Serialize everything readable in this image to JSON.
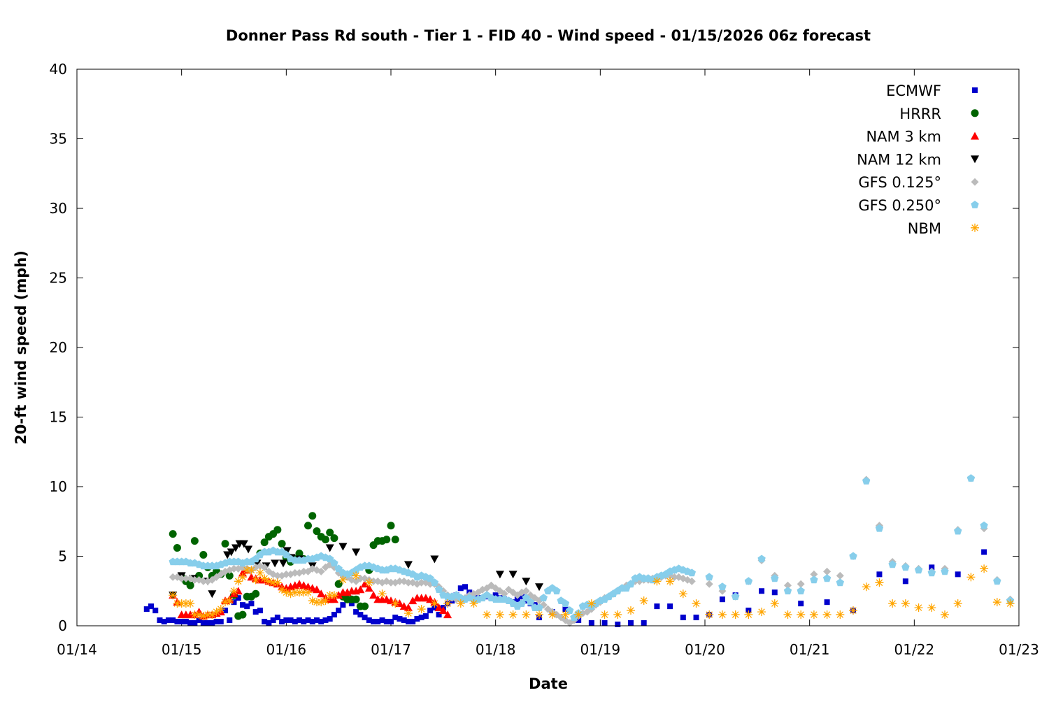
{
  "chart_data": {
    "type": "scatter",
    "title": "Donner Pass Rd south - Tier 1 - FID 40 - Wind speed - 01/15/2026 06z forecast",
    "xlabel": "Date",
    "ylabel": "20-ft wind speed (mph)",
    "x_units": "hours since 01/14 00:00",
    "xlim": [
      0,
      216
    ],
    "ylim": [
      0,
      40
    ],
    "yticks": [
      0,
      5,
      10,
      15,
      20,
      25,
      30,
      35,
      40
    ],
    "xticks": [
      {
        "value": 0,
        "label": "01/14"
      },
      {
        "value": 24,
        "label": "01/15"
      },
      {
        "value": 48,
        "label": "01/16"
      },
      {
        "value": 72,
        "label": "01/17"
      },
      {
        "value": 96,
        "label": "01/18"
      },
      {
        "value": 120,
        "label": "01/19"
      },
      {
        "value": 144,
        "label": "01/20"
      },
      {
        "value": 168,
        "label": "01/21"
      },
      {
        "value": 192,
        "label": "01/22"
      },
      {
        "value": 216,
        "label": "01/23"
      }
    ],
    "grid": false,
    "legend_position": "top-right",
    "series": [
      {
        "name": "ECMWF",
        "color": "#0000cc",
        "marker": "square",
        "segments": [
          {
            "start": 16,
            "step": 1,
            "values": [
              1.2,
              1.4,
              1.1,
              0.4,
              0.3,
              0.4,
              0.4,
              0.3,
              0.3,
              0.3,
              0.2,
              0.2,
              0.4,
              0.2,
              0.2,
              0.2,
              0.3,
              0.3,
              1.1,
              0.4,
              1.7,
              2.0,
              1.5,
              1.4,
              1.6,
              1.0,
              1.1,
              0.3,
              0.2,
              0.4,
              0.6,
              0.3,
              0.4,
              0.4,
              0.3,
              0.4,
              0.3,
              0.4,
              0.3,
              0.4,
              0.3,
              0.4,
              0.5,
              0.8,
              1.1,
              1.5,
              1.9,
              1.6,
              1.0,
              0.8,
              0.6,
              0.4,
              0.3,
              0.3,
              0.4,
              0.3,
              0.3,
              0.6,
              0.5,
              0.4,
              0.3,
              0.3,
              0.5,
              0.6,
              0.7,
              1.1,
              1.3,
              0.8,
              1.3,
              1.6,
              1.8,
              2.2,
              2.7,
              2.8,
              2.4,
              1.9,
              2.0,
              2.0,
              2.1,
              2.0,
              2.2,
              2.0,
              1.9,
              1.8,
              1.7,
              1.9,
              2.1,
              1.8,
              1.6,
              1.5
            ]
          },
          {
            "start": 106,
            "step": 3,
            "values": [
              0.6,
              1.0,
              1.2,
              0.4,
              0.2,
              0.2,
              0.1,
              0.2,
              0.2,
              1.4,
              1.4,
              0.6,
              0.6,
              0.8,
              1.9,
              2.2,
              1.1,
              2.5,
              2.4
            ]
          },
          {
            "start": 166,
            "step": 6,
            "values": [
              1.6,
              1.7,
              1.1,
              3.7,
              3.2,
              4.2,
              3.7,
              5.3
            ]
          }
        ]
      },
      {
        "name": "HRRR",
        "color": "#006400",
        "marker": "circle",
        "segments": [
          {
            "start": 22,
            "step": 1,
            "values": [
              6.6,
              5.6,
              3.5,
              3.2,
              2.9,
              6.1,
              3.6,
              5.1,
              4.2,
              3.6,
              3.9,
              3.7,
              5.9,
              3.6,
              2.2,
              0.7,
              0.8,
              2.1,
              2.1,
              2.3,
              5.2,
              6.0,
              6.4,
              6.6,
              6.9,
              5.9,
              4.9,
              4.6,
              4.8,
              5.2,
              4.8,
              7.2,
              7.9,
              6.8,
              6.4,
              6.2,
              6.7,
              6.3,
              3.0,
              2.1,
              1.9,
              1.9,
              1.9,
              1.4,
              1.4,
              4.0,
              5.8,
              6.1,
              6.1,
              6.2,
              7.2,
              6.2
            ]
          }
        ]
      },
      {
        "name": "NAM 3 km",
        "color": "#ff0000",
        "marker": "triangle",
        "segments": [
          {
            "start": 22,
            "step": 1,
            "values": [
              2.2,
              1.7,
              0.8,
              0.8,
              0.8,
              0.8,
              1.0,
              0.7,
              0.8,
              0.8,
              0.9,
              1.0,
              1.8,
              1.9,
              2.3,
              2.5,
              3.8,
              4.0,
              3.5,
              3.4,
              3.3,
              3.3,
              3.2,
              3.1,
              3.0,
              2.8,
              2.7,
              2.8,
              2.9,
              3.0,
              2.9,
              2.8,
              2.7,
              2.6,
              2.3,
              2.0,
              1.9,
              1.9,
              2.2,
              2.4,
              2.4,
              2.5,
              2.5,
              2.6,
              3.0,
              2.7,
              2.2,
              1.9,
              1.9,
              1.9,
              1.8,
              1.7,
              1.6,
              1.4,
              1.3,
              1.8,
              2.0,
              2.0,
              2.0,
              1.9,
              1.7,
              1.3,
              1.1,
              0.8
            ]
          }
        ]
      },
      {
        "name": "NAM 12 km",
        "color": "#000000",
        "marker": "triangle-down",
        "points": [
          [
            22,
            2.2
          ],
          [
            24,
            3.6
          ],
          [
            26.6,
            3.4
          ],
          [
            30,
            3.2
          ],
          [
            31,
            2.3
          ],
          [
            34.5,
            5.1
          ],
          [
            35.4,
            5.3
          ],
          [
            36.4,
            5.6
          ],
          [
            37.3,
            5.9
          ],
          [
            38.3,
            5.9
          ],
          [
            39.3,
            5.5
          ],
          [
            41.3,
            4.5
          ],
          [
            43.4,
            4.3
          ],
          [
            45.4,
            4.5
          ],
          [
            47.3,
            4.5
          ],
          [
            48.2,
            5.4
          ],
          [
            49.2,
            4.9
          ],
          [
            51.1,
            4.8
          ],
          [
            54,
            4.3
          ],
          [
            58,
            5.6
          ],
          [
            61,
            5.7
          ],
          [
            64,
            5.3
          ],
          [
            76,
            4.4
          ],
          [
            82,
            4.8
          ],
          [
            97,
            3.7
          ],
          [
            100,
            3.7
          ],
          [
            103,
            3.2
          ],
          [
            106,
            2.8
          ]
        ]
      },
      {
        "name": "GFS 0.125°",
        "color": "#bbbbbb",
        "marker": "diamond",
        "segments": [
          {
            "start": 22,
            "step": 1,
            "values": [
              3.5,
              3.5,
              3.4,
              3.4,
              3.4,
              3.3,
              3.3,
              3.2,
              3.2,
              3.3,
              3.5,
              3.7,
              3.9,
              4.0,
              4.1,
              4.1,
              4.2,
              4.1,
              4.0,
              4.2,
              4.3,
              4.2,
              3.9,
              3.7,
              3.6,
              3.6,
              3.7,
              3.7,
              3.8,
              3.8,
              3.9,
              3.9,
              4.1,
              4.0,
              3.9,
              4.2,
              4.4,
              4.2,
              3.8,
              3.6,
              3.5,
              3.3,
              3.2,
              3.4,
              3.4,
              3.3,
              3.2,
              3.2,
              3.1,
              3.2,
              3.1,
              3.1,
              3.2,
              3.2,
              3.1,
              3.1,
              3.0,
              3.1,
              3.1,
              3.0,
              3.0,
              2.8,
              2.5,
              2.2,
              2.0,
              1.9,
              1.9,
              2.0,
              2.2,
              2.3,
              2.4,
              2.6,
              2.7,
              2.9,
              2.7,
              2.5,
              2.3,
              2.6,
              2.4,
              2.2,
              2.4,
              2.5,
              2.2,
              2.0,
              1.8,
              1.5,
              1.2,
              1.0,
              0.8,
              0.6,
              0.4,
              0.2,
              0.4,
              0.7,
              0.9,
              1.0,
              1.2,
              1.5,
              1.7,
              2.0,
              2.1,
              2.3,
              2.5,
              2.7,
              2.9,
              3.0,
              3.2,
              3.2,
              3.3,
              3.3,
              3.4,
              3.4,
              3.5,
              3.6,
              3.6,
              3.5,
              3.5,
              3.4,
              3.3,
              3.2
            ]
          },
          {
            "start": 145,
            "step": 3,
            "values": [
              3.0,
              2.5,
              2.1,
              3.2,
              4.7,
              3.6,
              2.9,
              3.0,
              3.7,
              3.9,
              3.6,
              5.0,
              10.5,
              7.2,
              4.6,
              4.3,
              4.1,
              3.9,
              4.1,
              6.9,
              10.6,
              7.0,
              3.3,
              1.9
            ]
          }
        ]
      },
      {
        "name": "GFS 0.250°",
        "color": "#87ceeb",
        "marker": "pentagon",
        "segments": [
          {
            "start": 22,
            "step": 1,
            "values": [
              4.6,
              4.6,
              4.6,
              4.6,
              4.5,
              4.5,
              4.4,
              4.3,
              4.3,
              4.3,
              4.3,
              4.4,
              4.5,
              4.6,
              4.6,
              4.6,
              4.5,
              4.6,
              4.6,
              4.8,
              5.1,
              5.3,
              5.3,
              5.4,
              5.3,
              5.3,
              5.1,
              4.8,
              4.7,
              4.7,
              4.7,
              4.8,
              4.8,
              4.9,
              5.0,
              4.9,
              4.8,
              4.5,
              4.1,
              3.8,
              3.7,
              3.8,
              4.0,
              4.2,
              4.3,
              4.3,
              4.2,
              4.1,
              4.0,
              4.0,
              4.1,
              4.1,
              4.0,
              3.9,
              3.8,
              3.7,
              3.5,
              3.6,
              3.5,
              3.4,
              3.1,
              2.6,
              2.2,
              2.1,
              2.1,
              2.2,
              2.0,
              1.9,
              2.0,
              1.9,
              1.9,
              2.0,
              2.2,
              2.0,
              1.9,
              1.9,
              1.9,
              1.8,
              1.6,
              1.4,
              1.6,
              2.0,
              1.7,
              1.3,
              1.3,
              2.0,
              2.5,
              2.7,
              2.5,
              1.8,
              1.6,
              1.1,
              0.6,
              0.9,
              1.4,
              1.5,
              1.4,
              1.6,
              1.8,
              1.9,
              2.1,
              2.3,
              2.5,
              2.7,
              2.7,
              3.0,
              3.4,
              3.5,
              3.4,
              3.4,
              3.3,
              3.5,
              3.6,
              3.7,
              3.9,
              4.0,
              4.1,
              4.0,
              3.9,
              3.8
            ]
          },
          {
            "start": 145,
            "step": 3,
            "values": [
              3.5,
              2.8,
              2.1,
              3.2,
              4.8,
              3.4,
              2.5,
              2.5,
              3.3,
              3.4,
              3.1,
              5.0,
              10.4,
              7.0,
              4.4,
              4.2,
              4.0,
              3.8,
              3.9,
              6.8,
              10.6,
              7.2,
              3.2,
              1.8
            ]
          }
        ]
      },
      {
        "name": "NBM",
        "color": "#ffa500",
        "marker": "asterisk",
        "segments": [
          {
            "start": 22,
            "step": 1,
            "values": [
              2.2,
              1.6,
              1.6,
              1.6,
              1.6,
              0.8,
              0.8,
              0.7,
              0.8,
              0.8,
              1.0,
              1.2,
              1.7,
              1.8,
              2.5,
              3.2,
              3.5,
              4.0,
              4.0,
              3.3,
              3.8,
              3.4,
              3.2,
              3.1,
              3.1,
              2.6,
              2.4,
              2.3,
              2.4,
              2.4,
              2.4,
              2.4,
              1.8,
              1.7,
              1.7,
              1.8,
              2.2,
              2.2
            ]
          },
          {
            "start": 61,
            "step": 3,
            "values": [
              3.3,
              3.6,
              3.1,
              2.3,
              1.6,
              0.9,
              1.2,
              1.6,
              1.6,
              1.6,
              1.6,
              0.8,
              0.8,
              0.8,
              0.8,
              0.8,
              0.8,
              0.8,
              0.8,
              1.6,
              0.8,
              0.8,
              1.1,
              1.8,
              3.2,
              3.2,
              2.3,
              1.6,
              0.8,
              0.8,
              0.8,
              0.8,
              1.0,
              1.6,
              0.8,
              0.8,
              0.8,
              0.8,
              0.8,
              1.1,
              2.8,
              3.1,
              1.6,
              1.6,
              1.3,
              1.3,
              0.8,
              1.6,
              3.5,
              4.1,
              1.7,
              1.6
            ]
          }
        ]
      }
    ]
  }
}
